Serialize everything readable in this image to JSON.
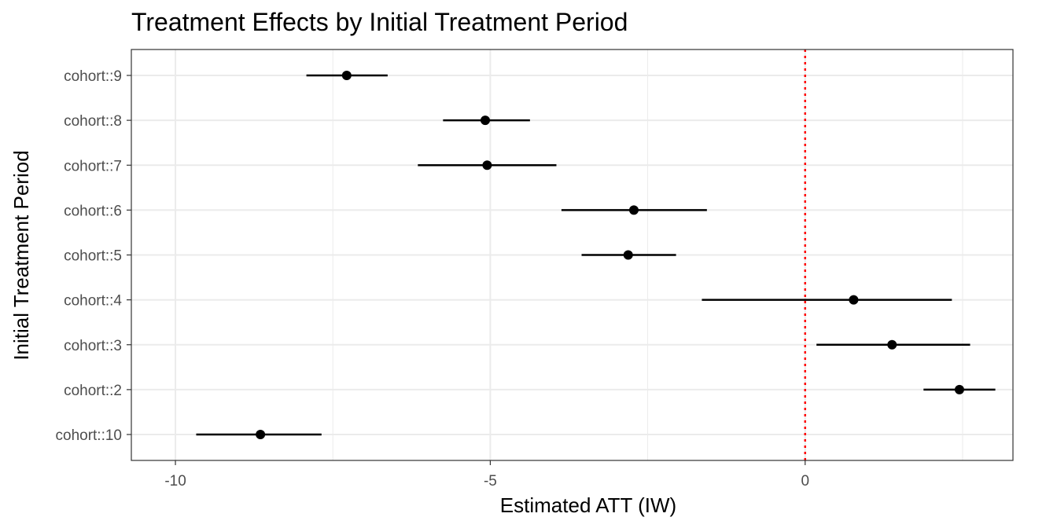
{
  "chart_data": {
    "type": "scatter",
    "subtype": "coefficient-plot",
    "title": "Treatment Effects by Initial Treatment Period",
    "xlabel": "Estimated ATT (IW)",
    "ylabel": "Initial Treatment Period",
    "xlim": [
      -10.7,
      3.3
    ],
    "x_ticks": [
      -10,
      -5,
      0
    ],
    "x_tick_labels": [
      "-10",
      "-5",
      "0"
    ],
    "categories": [
      "cohort::10",
      "cohort::2",
      "cohort::3",
      "cohort::4",
      "cohort::5",
      "cohort::6",
      "cohort::7",
      "cohort::8",
      "cohort::9"
    ],
    "estimates": [
      -8.65,
      2.45,
      1.38,
      0.77,
      -2.81,
      -2.72,
      -5.05,
      -5.08,
      -7.28
    ],
    "ci_low": [
      -9.67,
      1.88,
      0.18,
      -1.64,
      -3.55,
      -3.87,
      -6.15,
      -5.75,
      -7.92
    ],
    "ci_high": [
      -7.68,
      3.02,
      2.62,
      2.33,
      -2.05,
      -1.56,
      -3.95,
      -4.37,
      -6.63
    ],
    "reference_line": {
      "x": 0,
      "style": "dotted",
      "color": "#ff0000"
    },
    "grid": true,
    "colors": {
      "point": "#000000",
      "grid": "#ebebeb",
      "panel_border": "#333333"
    }
  }
}
